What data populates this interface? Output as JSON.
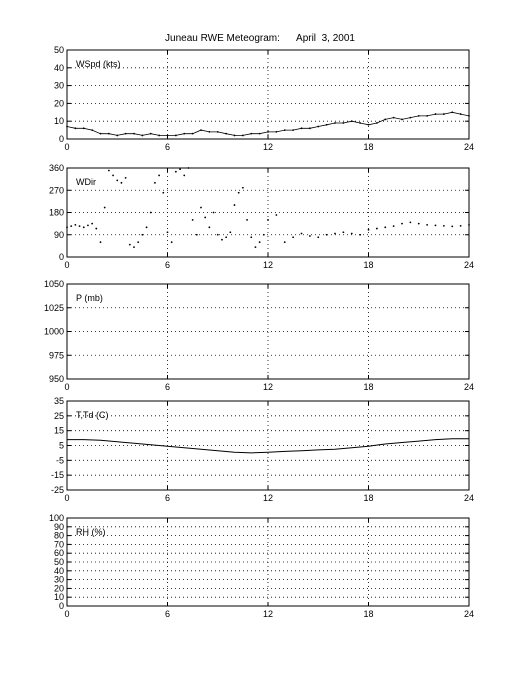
{
  "title": "Juneau RWE Meteogram:      April  3, 2001",
  "chart_data": [
    {
      "type": "scatter",
      "panel_label": "WSpd (kts)",
      "xlim": [
        0,
        24
      ],
      "xticks": [
        0,
        6,
        12,
        18,
        24
      ],
      "ylim": [
        0,
        50
      ],
      "yticks": [
        0,
        10,
        20,
        30,
        40,
        50
      ],
      "grid": true,
      "x": [
        0,
        0.5,
        1,
        1.5,
        2,
        2.5,
        3,
        3.5,
        4,
        4.5,
        5,
        5.5,
        6,
        6.5,
        7,
        7.5,
        8,
        8.5,
        9,
        9.5,
        10,
        10.5,
        11,
        11.5,
        12,
        12.5,
        13,
        13.5,
        14,
        14.5,
        15,
        15.5,
        16,
        16.5,
        17,
        17.5,
        18,
        18.5,
        19,
        19.5,
        20,
        20.5,
        21,
        21.5,
        22,
        22.5,
        23,
        23.5,
        24
      ],
      "y": [
        7,
        6,
        6,
        5,
        3,
        3,
        2,
        3,
        3,
        2,
        3,
        2,
        2,
        2,
        3,
        3,
        5,
        4,
        4,
        3,
        2,
        2,
        3,
        3,
        4,
        4,
        5,
        5,
        6,
        6,
        7,
        8,
        9,
        9,
        10,
        9,
        8,
        9,
        11,
        12,
        11,
        12,
        13,
        13,
        14,
        14,
        15,
        14,
        13
      ]
    },
    {
      "type": "scatter",
      "panel_label": "WDir",
      "xlim": [
        0,
        24
      ],
      "xticks": [
        0,
        6,
        12,
        18,
        24
      ],
      "ylim": [
        0,
        360
      ],
      "yticks": [
        0,
        90,
        180,
        270,
        360
      ],
      "grid": true,
      "x": [
        0,
        0.25,
        0.5,
        0.75,
        1,
        1.25,
        1.5,
        1.75,
        2,
        2.25,
        2.5,
        2.75,
        3,
        3.25,
        3.5,
        3.75,
        4,
        4.25,
        4.5,
        4.75,
        5,
        5.25,
        5.5,
        5.75,
        6,
        6.25,
        6.5,
        6.75,
        7,
        7.25,
        7.5,
        7.75,
        8,
        8.25,
        8.5,
        8.75,
        9,
        9.25,
        9.5,
        9.75,
        10,
        10.25,
        10.5,
        10.75,
        11,
        11.25,
        11.5,
        11.75,
        12,
        12.5,
        13,
        13.5,
        14,
        14.5,
        15,
        15.5,
        16,
        16.5,
        17,
        17.5,
        18,
        18.5,
        19,
        19.5,
        20,
        20.5,
        21,
        21.5,
        22,
        22.5,
        23,
        23.5,
        24
      ],
      "y": [
        120,
        125,
        130,
        125,
        120,
        128,
        135,
        115,
        60,
        200,
        350,
        330,
        310,
        300,
        320,
        50,
        40,
        60,
        90,
        120,
        180,
        300,
        330,
        260,
        100,
        60,
        345,
        355,
        330,
        360,
        150,
        90,
        200,
        160,
        120,
        180,
        90,
        70,
        80,
        100,
        210,
        260,
        280,
        150,
        80,
        40,
        60,
        90,
        150,
        170,
        60,
        80,
        95,
        85,
        80,
        90,
        95,
        100,
        95,
        90,
        110,
        115,
        120,
        125,
        135,
        140,
        135,
        130,
        128,
        126,
        124,
        126,
        130
      ]
    },
    {
      "type": "line",
      "panel_label": "P (mb)",
      "xlim": [
        0,
        24
      ],
      "xticks": [
        0,
        6,
        12,
        18,
        24
      ],
      "ylim": [
        950,
        1050
      ],
      "yticks": [
        950,
        975,
        1000,
        1025,
        1050
      ],
      "grid": true,
      "x": [],
      "y": []
    },
    {
      "type": "line",
      "panel_label": "T,Td (C)",
      "xlim": [
        0,
        24
      ],
      "xticks": [
        0,
        6,
        12,
        18,
        24
      ],
      "ylim": [
        -25,
        35
      ],
      "yticks": [
        -25,
        -15,
        -5,
        5,
        15,
        25,
        35
      ],
      "grid": true,
      "x": [
        0,
        1,
        2,
        3,
        4,
        5,
        6,
        7,
        8,
        9,
        10,
        11,
        12,
        13,
        14,
        15,
        16,
        17,
        18,
        19,
        20,
        21,
        22,
        23,
        24
      ],
      "y": [
        9,
        9,
        8.5,
        7.5,
        6.5,
        5.5,
        4.5,
        3.5,
        2.5,
        1.5,
        0.5,
        0,
        0.5,
        1,
        1.5,
        2,
        2.5,
        3.5,
        4.5,
        6,
        7,
        8,
        9,
        9.5,
        9.5
      ]
    },
    {
      "type": "line",
      "panel_label": "RH (%)",
      "xlim": [
        0,
        24
      ],
      "xticks": [
        0,
        6,
        12,
        18,
        24
      ],
      "ylim": [
        0,
        100
      ],
      "yticks": [
        0,
        10,
        20,
        30,
        40,
        50,
        60,
        70,
        80,
        90,
        100
      ],
      "grid": true,
      "x": [],
      "y": []
    }
  ]
}
